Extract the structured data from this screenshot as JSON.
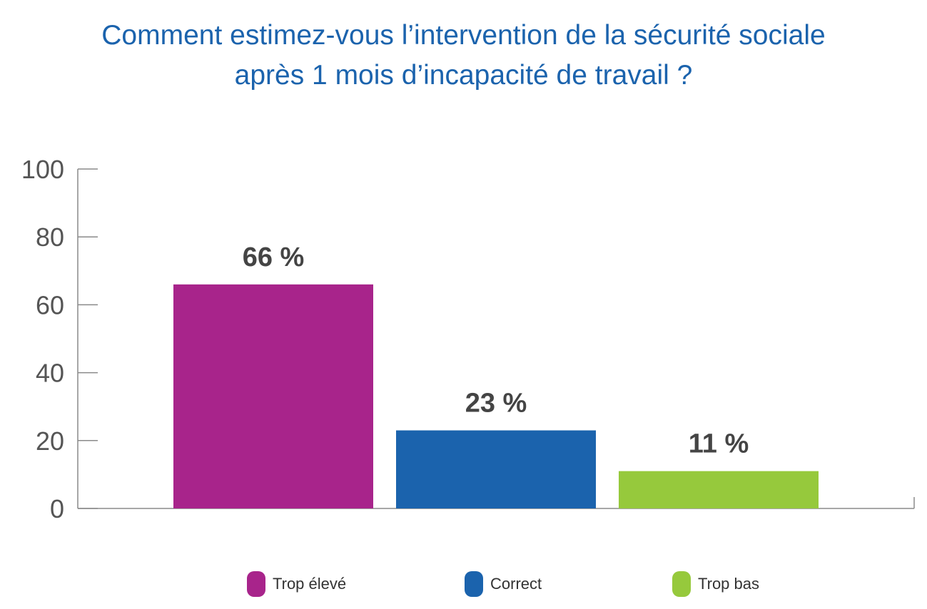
{
  "title_lines": [
    "Comment estimez-vous l’intervention de la sécurité sociale",
    "après 1 mois d’incapacité de travail ?"
  ],
  "colors": {
    "title": "#1b63ad",
    "axis": "#8a8a8a",
    "tick_text": "#555555",
    "data_label": "#444444",
    "legend_text": "#333333"
  },
  "chart_data": {
    "type": "bar",
    "title": "Comment estimez-vous l’intervention de la sécurité sociale après 1 mois d’incapacité de travail ?",
    "categories": [
      "Trop élevé",
      "Correct",
      "Trop bas"
    ],
    "values": [
      66,
      23,
      11
    ],
    "data_labels": [
      "66 %",
      "23 %",
      "11 %"
    ],
    "bar_colors": [
      "#a8248b",
      "#1b63ad",
      "#96c93c"
    ],
    "ylim": [
      0,
      100
    ],
    "yticks": [
      0,
      20,
      40,
      60,
      80,
      100
    ],
    "xlabel": "",
    "ylabel": "",
    "grid": false,
    "legend_position": "bottom"
  },
  "legend": [
    {
      "label": "Trop élevé",
      "color": "#a8248b",
      "icon": "rounded-square-swatch"
    },
    {
      "label": "Correct",
      "color": "#1b63ad",
      "icon": "rounded-square-swatch"
    },
    {
      "label": "Trop bas",
      "color": "#96c93c",
      "icon": "rounded-square-swatch"
    }
  ]
}
